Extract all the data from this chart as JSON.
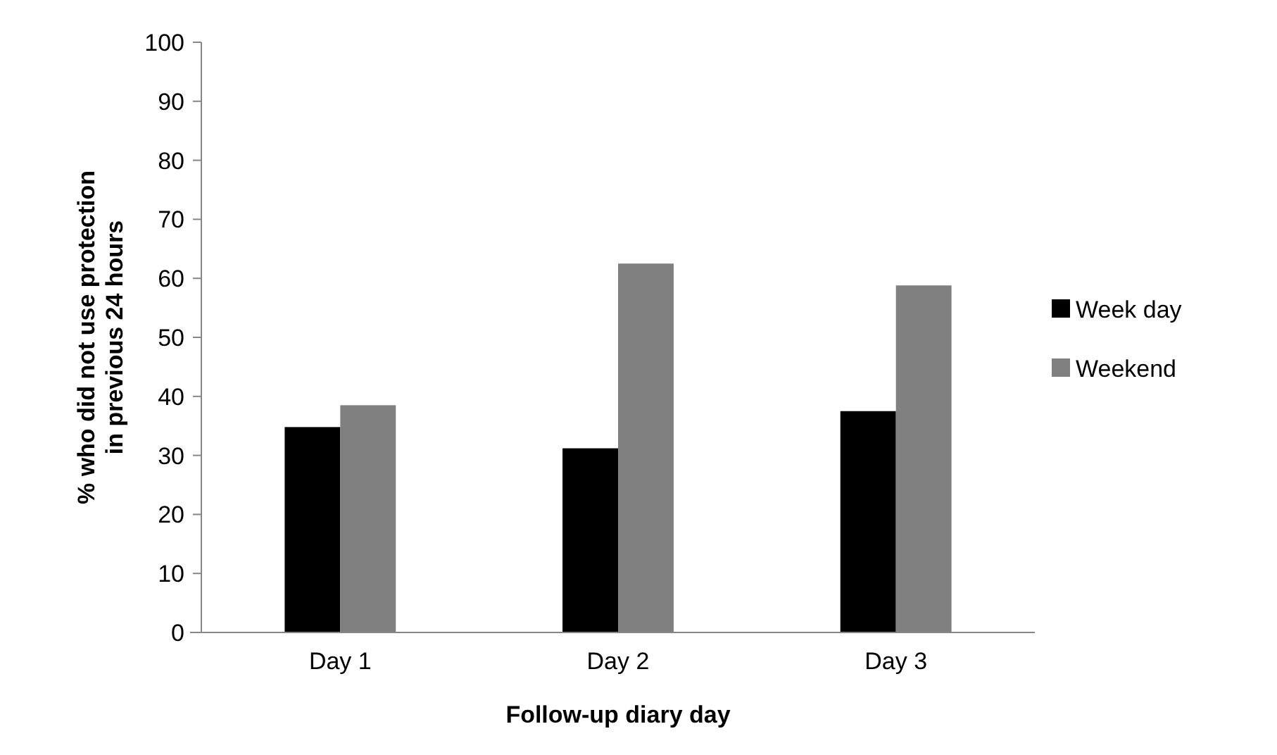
{
  "chart_data": {
    "type": "bar",
    "xlabel": "Follow-up diary day",
    "ylabel": "% who did not use protection in previous 24 hours",
    "categories": [
      "Day 1",
      "Day 2",
      "Day 3"
    ],
    "series": [
      {
        "name": "Week day",
        "color": "#000000",
        "values": [
          34.8,
          31.2,
          37.5
        ]
      },
      {
        "name": "Weekend",
        "color": "#808080",
        "values": [
          38.5,
          62.5,
          58.8
        ]
      }
    ],
    "ylim": [
      0,
      100
    ],
    "yticks": [
      0,
      10,
      20,
      30,
      40,
      50,
      60,
      70,
      80,
      90,
      100
    ],
    "grid": false,
    "legend": "right"
  }
}
